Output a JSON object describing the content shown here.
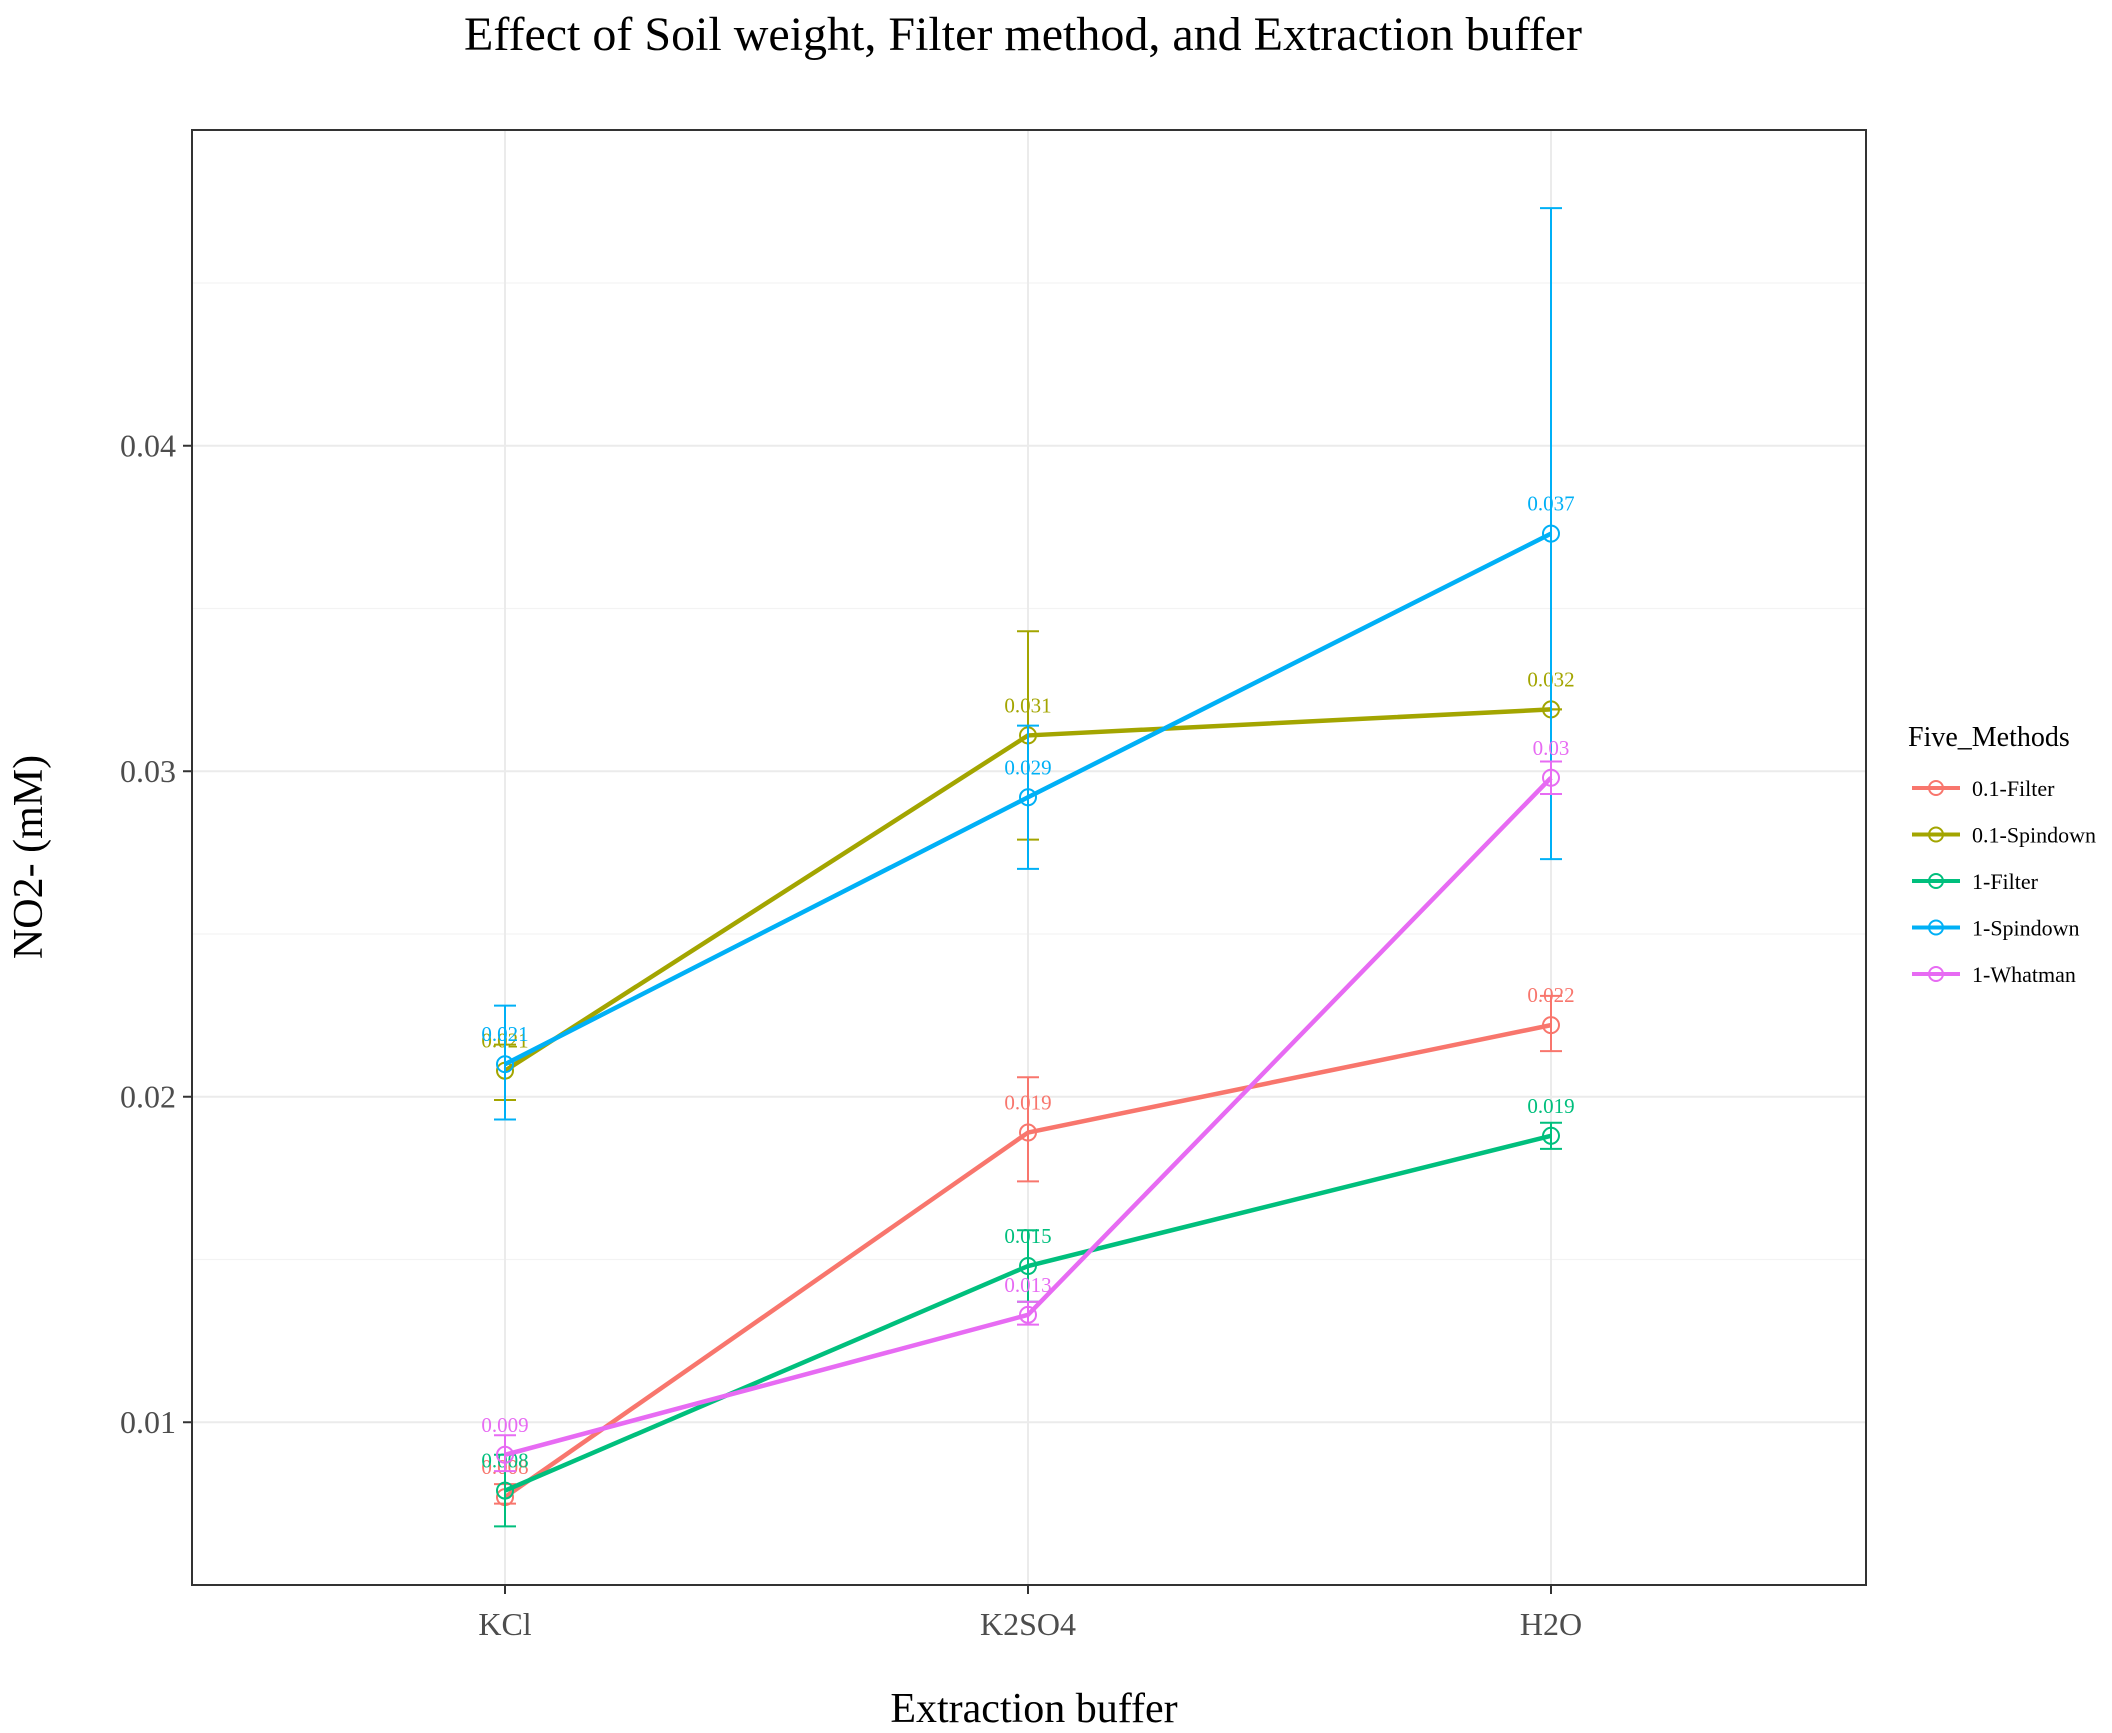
{
  "chart_data": {
    "type": "line",
    "title": "Effect of Soil weight, Filter method, and Extraction buffer",
    "xlabel": "Extraction buffer",
    "ylabel": "NO2- (mM)",
    "categories": [
      "KCl",
      "K2SO4",
      "H2O"
    ],
    "ylim": [
      0.005,
      0.0497
    ],
    "yticks": [
      0.01,
      0.02,
      0.03,
      0.04
    ],
    "ytick_labels": [
      "0.01",
      "0.02",
      "0.03",
      "0.04"
    ],
    "grid": true,
    "legend": {
      "title": "Five_Methods",
      "position": "right"
    },
    "series": [
      {
        "name": "0.1-Filter",
        "color": "#F8766D",
        "values": [
          0.0077,
          0.0189,
          0.0222
        ],
        "error_low": [
          0.0075,
          0.0174,
          0.0214
        ],
        "error_high": [
          0.0081,
          0.0206,
          0.0231
        ],
        "labels": [
          "0.008",
          "0.019",
          "0.022"
        ]
      },
      {
        "name": "0.1-Spindown",
        "color": "#A3A500",
        "values": [
          0.0208,
          0.0311,
          0.0319
        ],
        "error_low": [
          0.0199,
          0.0279,
          0.0319
        ],
        "error_high": [
          0.0216,
          0.0343,
          0.0319
        ],
        "labels": [
          "0.021",
          "0.031",
          "0.032"
        ]
      },
      {
        "name": "1-Filter",
        "color": "#00BF7D",
        "values": [
          0.0079,
          0.0148,
          0.0188
        ],
        "error_low": [
          0.0068,
          0.0137,
          0.0184
        ],
        "error_high": [
          0.009,
          0.0159,
          0.0192
        ],
        "labels": [
          "0.008",
          "0.015",
          "0.019"
        ]
      },
      {
        "name": "1-Spindown",
        "color": "#00B0F6",
        "values": [
          0.021,
          0.0292,
          0.0373
        ],
        "error_low": [
          0.0193,
          0.027,
          0.0273
        ],
        "error_high": [
          0.0228,
          0.0314,
          0.0473
        ],
        "labels": [
          "0.021",
          "0.029",
          "0.037"
        ]
      },
      {
        "name": "1-Whatman",
        "color": "#E76BF3",
        "values": [
          0.009,
          0.0133,
          0.0298
        ],
        "error_low": [
          0.0085,
          0.013,
          0.0293
        ],
        "error_high": [
          0.0096,
          0.0137,
          0.0303
        ],
        "labels": [
          "0.009",
          "0.013",
          "0.03"
        ]
      }
    ]
  }
}
